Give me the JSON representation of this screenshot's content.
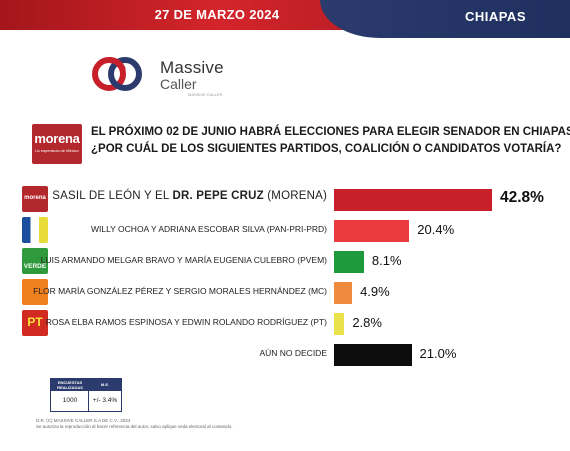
{
  "header": {
    "date": "27 DE MARZO 2024",
    "region": "CHIAPAS",
    "brand_red": "#d3252b",
    "brand_navy": "#2b3b6e"
  },
  "logo": {
    "line1": "Massive",
    "line2": "Caller",
    "tagline": "MASSIVE CALLER"
  },
  "question": {
    "party_logo_text": "morena",
    "party_logo_sub": "La esperanza de México",
    "line1": "EL PRÓXIMO 02 DE JUNIO HABRÁ ELECCIONES PARA ELEGIR SENADOR EN CHIAPAS",
    "line2": "¿POR CUÁL DE LOS SIGUIENTES PARTIDOS, COALICIÓN O CANDIDATOS VOTARÍA?"
  },
  "chart_data": {
    "type": "bar",
    "orientation": "horizontal",
    "value_unit": "%",
    "categories": [
      "SASIL DE LEÓN Y EL DR. PEPE CRUZ (MORENA)",
      "WILLY OCHOA Y ADRIANA ESCOBAR SILVA (PAN-PRI-PRD)",
      "LUIS ARMANDO MELGAR BRAVO Y MARÍA EUGENIA CULEBRO (PVEM)",
      "FLOR MARÍA GONZÁLEZ PÉREZ Y SERGIO MORALES HERNÁNDEZ (MC)",
      "ROSA ELBA RAMOS ESPINOSA Y EDWIN ROLANDO RODRÍGUEZ (PT)",
      "AÚN NO DECIDE"
    ],
    "values": [
      42.8,
      20.4,
      8.1,
      4.9,
      2.8,
      21.0
    ],
    "labels": [
      "42.8%",
      "20.4%",
      "8.1%",
      "4.9%",
      "2.8%",
      "21.0%"
    ],
    "colors": [
      "#c8202a",
      "#ea3b3f",
      "#1e9a3c",
      "#f08a3c",
      "#e9e24a",
      "#0d0d0d"
    ],
    "lead_label_parts": [
      "SASIL DE LEÓN Y EL ",
      "DR. PEPE CRUZ",
      " (MORENA)"
    ],
    "party_logos": [
      {
        "icon": "morena-logo",
        "text": "morena"
      },
      {
        "icon": "pan-pri-prd-logo",
        "text": ""
      },
      {
        "icon": "pvem-logo",
        "text": "VERDE"
      },
      {
        "icon": "mc-logo",
        "text": ""
      },
      {
        "icon": "pt-logo",
        "text": "PT"
      },
      {
        "icon": "",
        "text": ""
      }
    ],
    "xlim": [
      0,
      42.8
    ],
    "grid": false,
    "legend": "none"
  },
  "footer": {
    "col1_header": "ENCUESTAS REALIZADAS",
    "col2_header": "M.E.",
    "col1_value": "1000",
    "col2_value": "+/- 3.4%",
    "note1": "D.R. (C) MASSIVE CALLER S.A DE C.V., 2024",
    "note2": "Se autoriza la reproducción al hacer referencia del autor, salvo aplique veda electoral al contenido."
  }
}
